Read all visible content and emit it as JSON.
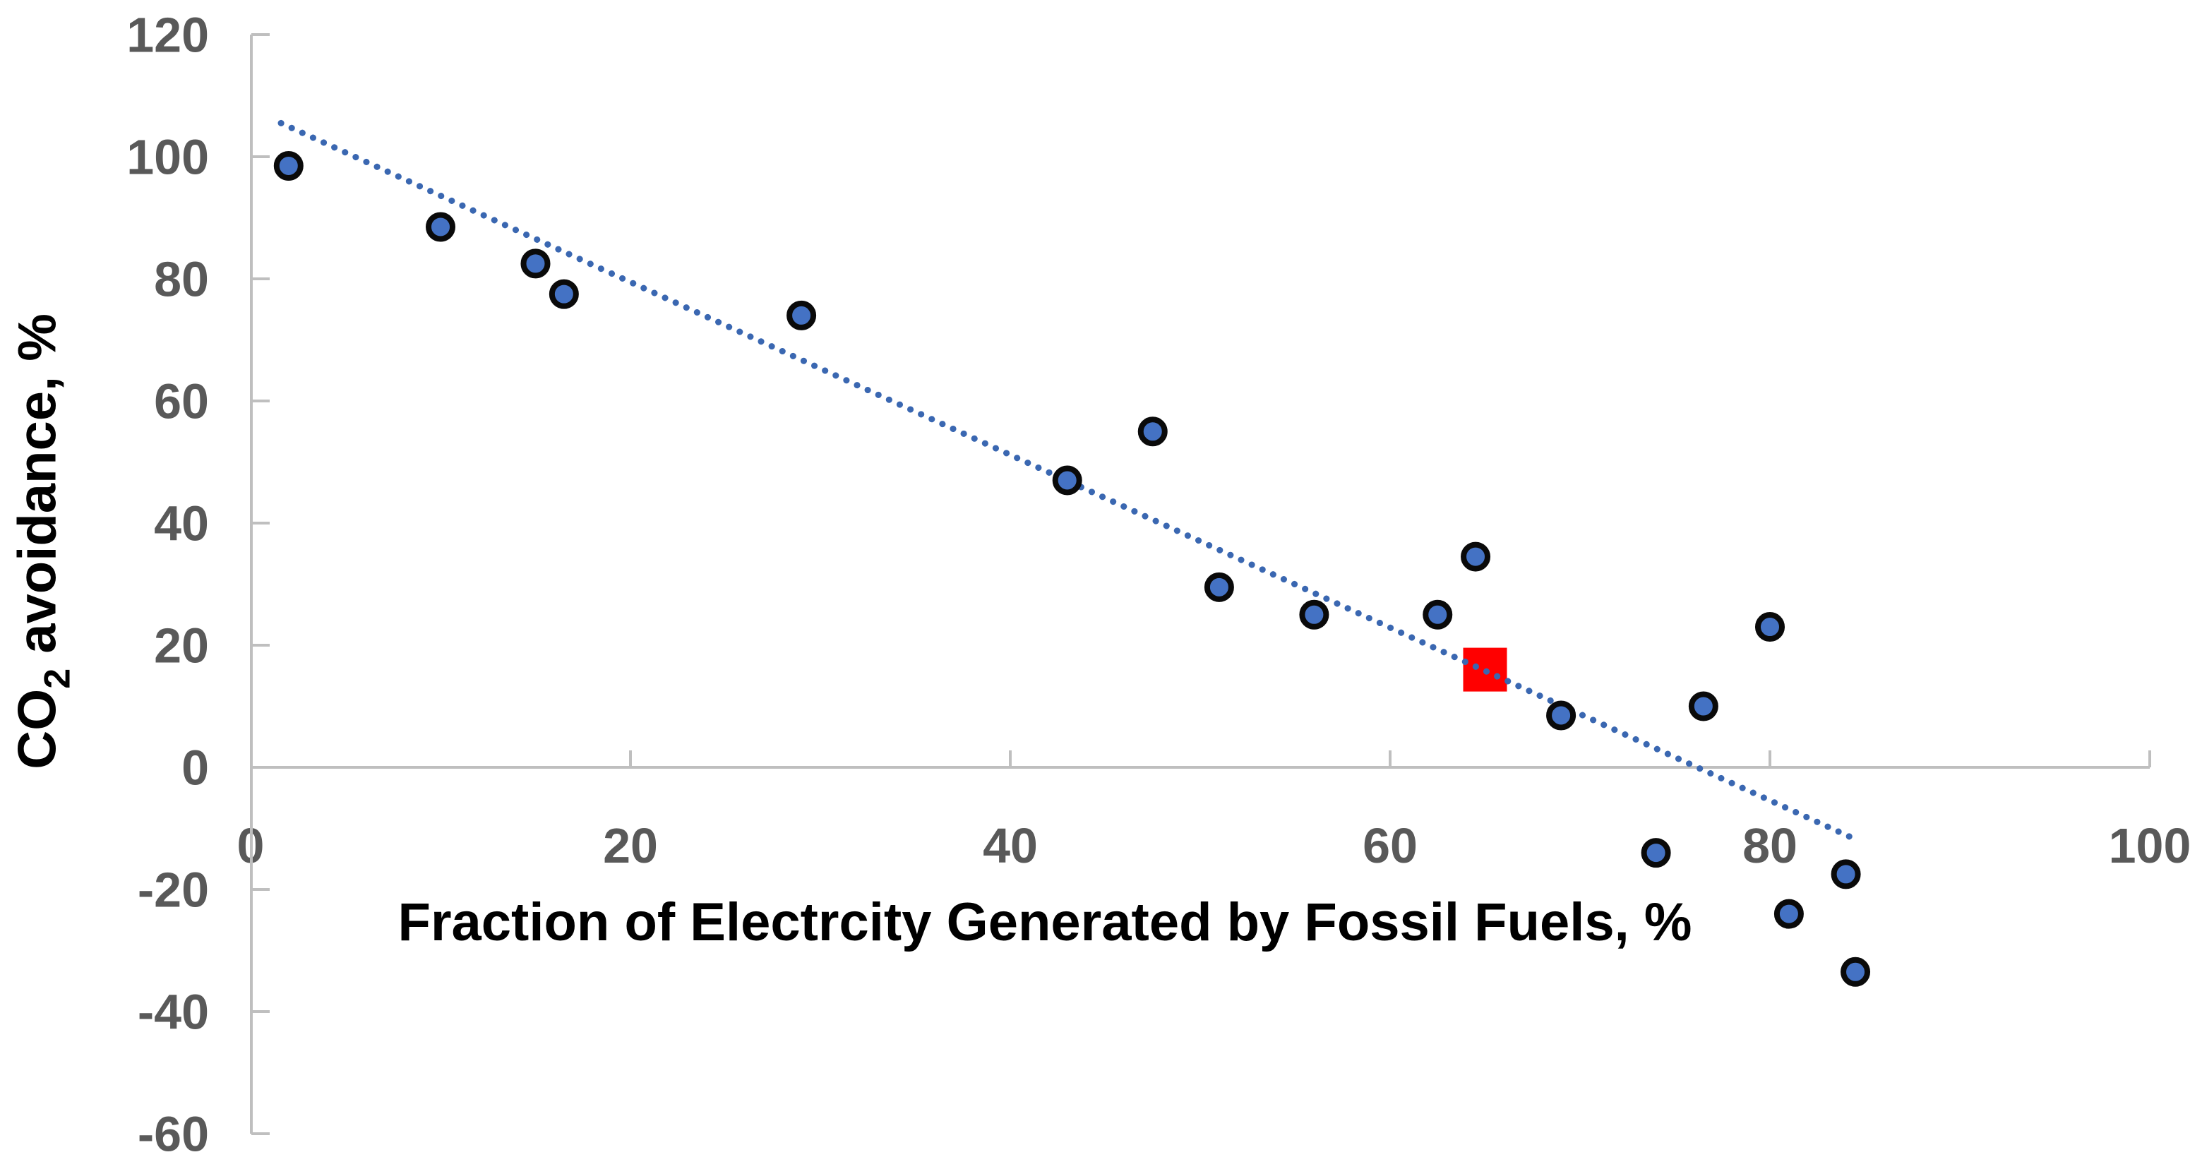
{
  "chart_data": {
    "type": "scatter",
    "title": "",
    "xlabel": "Fraction of Electrcity Generated by Fossil Fuels, %",
    "ylabel": "CO2 avoidance, %",
    "ylabel_parts": {
      "main": "CO",
      "sub": "2",
      "rest": " avoidance, %"
    },
    "xlim": [
      0,
      100
    ],
    "ylim": [
      -60,
      120
    ],
    "x_ticks": [
      0,
      20,
      40,
      60,
      80,
      100
    ],
    "y_ticks": [
      120,
      100,
      80,
      60,
      40,
      20,
      0,
      -20,
      -40,
      -60
    ],
    "grid": false,
    "legend": "none",
    "series": [
      {
        "name": "co2-avoidance-points",
        "marker": "circle",
        "fill": "#4472C4",
        "stroke": "#0a0a0a",
        "points": [
          [
            2,
            98.5
          ],
          [
            10,
            88.5
          ],
          [
            15,
            82.5
          ],
          [
            16.5,
            77.5
          ],
          [
            29,
            74
          ],
          [
            43,
            47
          ],
          [
            47.5,
            55
          ],
          [
            51,
            29.5
          ],
          [
            56,
            25
          ],
          [
            62.5,
            25
          ],
          [
            64.5,
            34.5
          ],
          [
            69,
            8.5
          ],
          [
            74,
            -14
          ],
          [
            76.5,
            10
          ],
          [
            80,
            23
          ],
          [
            81,
            -24
          ],
          [
            84,
            -17.5
          ],
          [
            84.5,
            -33.5
          ]
        ]
      },
      {
        "name": "highlighted-point",
        "marker": "square",
        "fill": "#FF0000",
        "stroke": "none",
        "points": [
          [
            65,
            16
          ]
        ]
      }
    ],
    "trendline": {
      "style": "dotted",
      "color": "#3A67B1",
      "x1": 1.6,
      "y1": 105.5,
      "x2": 84.3,
      "y2": -11.5
    },
    "colors": {
      "axis_line": "#BFBFBF",
      "tick_label": "#595959",
      "axis_title": "#000000"
    }
  }
}
